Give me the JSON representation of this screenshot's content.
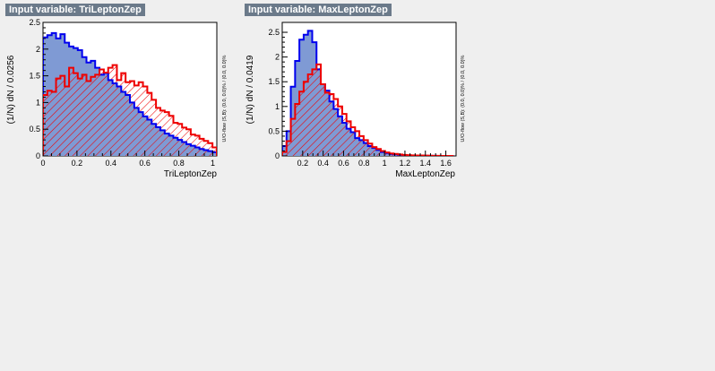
{
  "colors": {
    "background": "#efefef",
    "title_bg": "#6b7a8a",
    "signal_fill": "#7f9ad4",
    "signal_line": "#0000ee",
    "background_line": "#ee0000"
  },
  "chart_data": [
    {
      "type": "histogram",
      "title": "Input variable: TriLeptonZep",
      "xlabel": "TriLeptonZep",
      "ylabel": "(1/N) dN / 0.0256",
      "overflow_label": "U/O-flow (S,B): (0.0, 0.0)% / (0.0, 0.0)%",
      "xlim": [
        0,
        1.024
      ],
      "ylim": [
        0,
        2.5
      ],
      "x_ticks": [
        0,
        0.2,
        0.4,
        0.6,
        0.8,
        1
      ],
      "x_tick_labels": [
        "0",
        "0.2",
        "0.4",
        "0.6",
        "0.8",
        "1"
      ],
      "y_ticks": [
        0,
        0.5,
        1,
        1.5,
        2,
        2.5
      ],
      "y_tick_labels": [
        "0",
        "0.5",
        "1",
        "1.5",
        "2",
        "2.5"
      ],
      "bin_edges_start": 0,
      "bin_width": 0.0256,
      "series": [
        {
          "role": "signal",
          "values": [
            2.22,
            2.26,
            2.3,
            2.2,
            2.28,
            2.12,
            2.05,
            2.02,
            1.98,
            1.85,
            1.75,
            1.78,
            1.65,
            1.52,
            1.55,
            1.42,
            1.36,
            1.3,
            1.2,
            1.14,
            1.0,
            0.9,
            0.82,
            0.74,
            0.68,
            0.6,
            0.54,
            0.48,
            0.42,
            0.38,
            0.34,
            0.3,
            0.26,
            0.22,
            0.19,
            0.16,
            0.13,
            0.11,
            0.09,
            0.07
          ]
        },
        {
          "role": "background",
          "values": [
            1.14,
            1.22,
            1.2,
            1.45,
            1.5,
            1.3,
            1.65,
            1.55,
            1.45,
            1.52,
            1.4,
            1.48,
            1.52,
            1.62,
            1.56,
            1.65,
            1.7,
            1.42,
            1.55,
            1.38,
            1.4,
            1.32,
            1.38,
            1.3,
            1.18,
            1.05,
            0.9,
            0.85,
            0.82,
            0.75,
            0.62,
            0.6,
            0.53,
            0.5,
            0.4,
            0.38,
            0.32,
            0.28,
            0.24,
            0.16
          ]
        }
      ]
    },
    {
      "type": "histogram",
      "title": "Input variable: MaxLeptonZep",
      "xlabel": "MaxLeptonZep",
      "ylabel": "(1/N) dN / 0.0419",
      "overflow_label": "U/O-flow (S,B): (0.0, 0.0)% / (0.0, 0.0)%",
      "xlim": [
        0.0,
        1.7
      ],
      "ylim": [
        0,
        2.7
      ],
      "x_ticks": [
        0.2,
        0.4,
        0.6,
        0.8,
        1,
        1.2,
        1.4,
        1.6
      ],
      "x_tick_labels": [
        "0.2",
        "0.4",
        "0.6",
        "0.8",
        "1",
        "1.2",
        "1.4",
        "1.6"
      ],
      "y_ticks": [
        0,
        0.5,
        1,
        1.5,
        2,
        2.5
      ],
      "y_tick_labels": [
        "0",
        "0.5",
        "1",
        "1.5",
        "2",
        "2.5"
      ],
      "bin_edges_start": 0.0,
      "bin_width": 0.0419,
      "series": [
        {
          "role": "signal",
          "values": [
            0.2,
            0.5,
            1.4,
            1.92,
            2.35,
            2.45,
            2.53,
            2.3,
            1.75,
            1.45,
            1.32,
            1.1,
            0.95,
            0.8,
            0.67,
            0.55,
            0.48,
            0.36,
            0.32,
            0.26,
            0.2,
            0.16,
            0.12,
            0.08,
            0.06,
            0.04,
            0.03,
            0.02,
            0.015,
            0.01,
            0.008,
            0.006,
            0.004,
            0.003,
            0.002,
            0.0015,
            0.001,
            0.0005,
            0.0,
            0.0
          ]
        },
        {
          "role": "background",
          "values": [
            0.08,
            0.3,
            0.75,
            1.05,
            1.3,
            1.5,
            1.65,
            1.75,
            1.85,
            1.45,
            1.28,
            1.25,
            1.15,
            1.0,
            0.85,
            0.7,
            0.58,
            0.5,
            0.4,
            0.32,
            0.25,
            0.18,
            0.14,
            0.1,
            0.07,
            0.05,
            0.04,
            0.03,
            0.02,
            0.015,
            0.012,
            0.01,
            0.008,
            0.006,
            0.004,
            0.003,
            0.002,
            0.001,
            0.0005,
            0.0
          ]
        }
      ]
    }
  ]
}
